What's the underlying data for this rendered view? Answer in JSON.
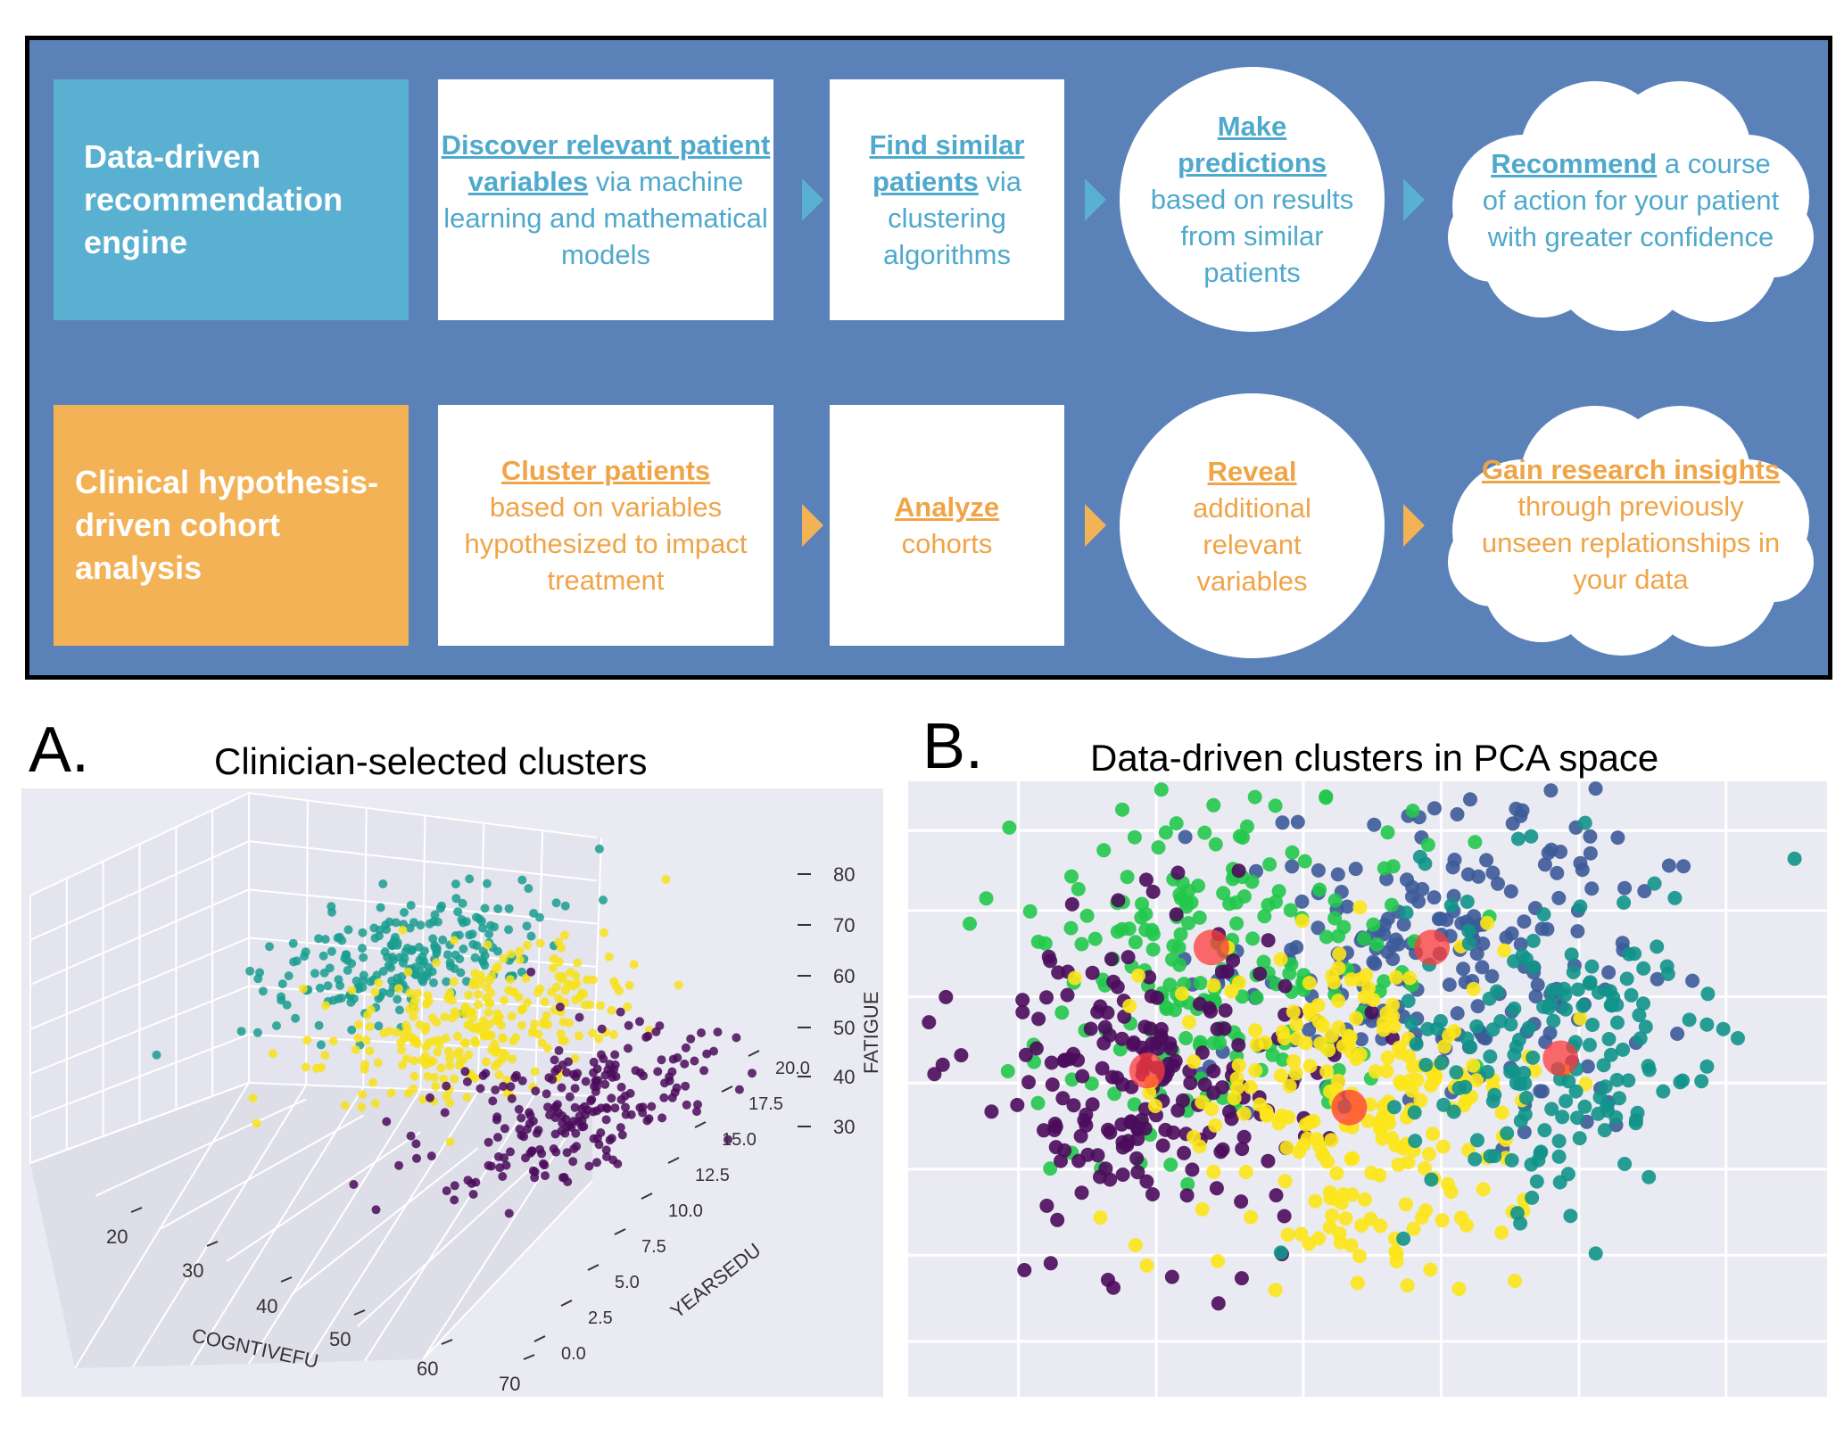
{
  "flow": {
    "top": {
      "label": "Data-driven recommendation engine",
      "steps": [
        {
          "bold": "Discover relevant patient variables",
          "text": "via machine learning and mathematical models"
        },
        {
          "bold": "Find similar patients",
          "text": "via clustering algorithms"
        },
        {
          "bold": "Make predictions",
          "text": "based on results from similar patients"
        },
        {
          "bold": "Recommend",
          "text": "a course of action for your patient with greater confidence"
        }
      ]
    },
    "bottom": {
      "label": "Clinical hypothesis-driven cohort analysis",
      "steps": [
        {
          "bold": "Cluster patients",
          "text": "based on variables hypothesized to impact treatment"
        },
        {
          "bold": "Analyze",
          "text": "cohorts"
        },
        {
          "bold": "Reveal",
          "text": "additional relevant variables"
        },
        {
          "bold": "Gain research insights",
          "text": "through previously unseen replationships in your data"
        }
      ]
    },
    "colors": {
      "panel": "#5a81b8",
      "top_accent": "#59b0d0",
      "bottom_accent": "#f4b256"
    }
  },
  "panels": {
    "a": {
      "letter": "A.",
      "title": "Clinician-selected clusters"
    },
    "b": {
      "letter": "B.",
      "title": "Data-driven clusters in PCA space"
    }
  },
  "chart_data": [
    {
      "type": "scatter",
      "projection": "3d",
      "xlabel": "COGNTIVEFU",
      "ylabel": "YEARSEDU",
      "zlabel": "FATIGUE",
      "x_ticks": [
        "20",
        "30",
        "40",
        "50",
        "60",
        "70"
      ],
      "y_ticks": [
        "0.0",
        "2.5",
        "5.0",
        "7.5",
        "10.0",
        "12.5",
        "15.0",
        "17.5",
        "20.0"
      ],
      "z_ticks": [
        "30",
        "40",
        "50",
        "60",
        "70",
        "80"
      ],
      "series": [
        {
          "color": "#1a9e8f",
          "z_center": 66
        },
        {
          "color": "#f7e21a",
          "z_center": 52
        },
        {
          "color": "#4b0c5c",
          "z_center": 38
        }
      ],
      "grid": true
    },
    {
      "type": "scatter",
      "grid": true,
      "series": [
        {
          "color": "#3d5b99",
          "center": [
            0.57,
            0.27
          ]
        },
        {
          "color": "#22c84b",
          "center": [
            0.33,
            0.27
          ]
        },
        {
          "color": "#4b0c5c",
          "center": [
            0.26,
            0.47
          ]
        },
        {
          "color": "#fce51a",
          "center": [
            0.48,
            0.53
          ]
        },
        {
          "color": "#12938a",
          "center": [
            0.71,
            0.45
          ]
        }
      ],
      "centroid_color": "#ff3b3b"
    }
  ]
}
